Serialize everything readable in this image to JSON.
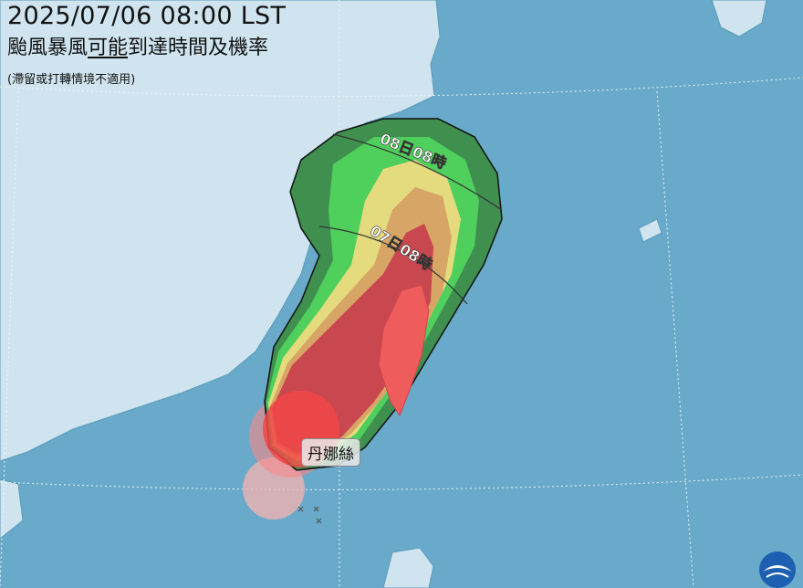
{
  "header": {
    "datetime": "2025/07/06 08:00 LST",
    "title_pre": "颱風暴風",
    "title_underlined": "可能",
    "title_post": "到達時間及機率",
    "note": "(滯留或打轉情境不適用)"
  },
  "map": {
    "storm_name": "丹娜絲",
    "time_lines": [
      "08日08時",
      "07日08時"
    ],
    "probability_colors": [
      "#3f8f4f",
      "#4fcf5c",
      "#e4da7e",
      "#d7a666",
      "#c9474e",
      "#f24848"
    ],
    "sea_color": "#69a9c9",
    "land_color": "#cfe4ef"
  },
  "logo": {
    "name": "cwa-logo-icon"
  }
}
